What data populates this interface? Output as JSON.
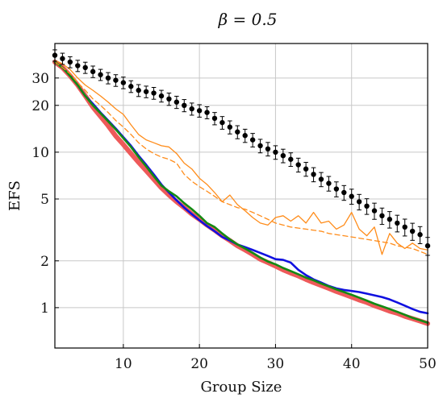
{
  "chart_data": {
    "type": "line",
    "title": "β = 0.5",
    "xlabel": "Group Size",
    "ylabel": "EFS",
    "y_scale": "log",
    "xlim": [
      1,
      50
    ],
    "ylim": [
      0.55,
      50
    ],
    "grid": true,
    "x_ticks": [
      10,
      20,
      30,
      40,
      50
    ],
    "y_ticks": [
      1,
      2,
      5,
      10,
      20,
      30
    ],
    "x_tick_labels": [
      "10",
      "20",
      "30",
      "40",
      "50"
    ],
    "y_tick_labels": [
      "1",
      "2",
      "5",
      "10",
      "20",
      "30"
    ],
    "colors": {
      "red": "#ee5a5a",
      "blue": "#1010e0",
      "green": "#138a13",
      "orange": "#ff8c1a",
      "black": "#000000"
    },
    "x": [
      1,
      2,
      3,
      4,
      5,
      6,
      7,
      8,
      9,
      10,
      11,
      12,
      13,
      14,
      15,
      16,
      17,
      18,
      19,
      20,
      21,
      22,
      23,
      24,
      25,
      26,
      27,
      28,
      29,
      30,
      31,
      32,
      33,
      34,
      35,
      36,
      37,
      38,
      39,
      40,
      41,
      42,
      43,
      44,
      45,
      46,
      47,
      48,
      49,
      50
    ],
    "series": [
      {
        "style": "red-thick",
        "values": [
          38,
          35,
          31,
          27,
          23,
          19.5,
          17,
          14.8,
          12.7,
          11.2,
          9.8,
          8.6,
          7.6,
          6.7,
          5.9,
          5.3,
          4.8,
          4.4,
          4.0,
          3.7,
          3.4,
          3.15,
          2.9,
          2.7,
          2.5,
          2.35,
          2.2,
          2.05,
          1.95,
          1.85,
          1.75,
          1.67,
          1.6,
          1.52,
          1.45,
          1.39,
          1.33,
          1.27,
          1.22,
          1.17,
          1.12,
          1.08,
          1.03,
          0.99,
          0.95,
          0.92,
          0.88,
          0.85,
          0.82,
          0.79
        ]
      },
      {
        "style": "blue",
        "values": [
          38,
          35,
          31,
          27,
          23,
          20.5,
          18,
          16,
          14.2,
          12.5,
          11,
          9.5,
          8.3,
          7.2,
          6.2,
          5.5,
          4.9,
          4.4,
          4.0,
          3.65,
          3.35,
          3.1,
          2.85,
          2.7,
          2.55,
          2.45,
          2.35,
          2.25,
          2.15,
          2.05,
          2.03,
          1.95,
          1.75,
          1.62,
          1.52,
          1.45,
          1.38,
          1.33,
          1.3,
          1.28,
          1.26,
          1.23,
          1.2,
          1.17,
          1.13,
          1.08,
          1.03,
          0.98,
          0.94,
          0.92
        ]
      },
      {
        "style": "green",
        "values": [
          38,
          35,
          31,
          27,
          23,
          20,
          17.8,
          15.8,
          14,
          12.3,
          10.8,
          9.3,
          8.1,
          7.0,
          6.1,
          5.6,
          5.2,
          4.7,
          4.3,
          3.9,
          3.5,
          3.3,
          3.0,
          2.75,
          2.55,
          2.4,
          2.25,
          2.1,
          1.98,
          1.9,
          1.8,
          1.72,
          1.64,
          1.56,
          1.5,
          1.43,
          1.37,
          1.31,
          1.26,
          1.21,
          1.16,
          1.11,
          1.06,
          1.02,
          0.98,
          0.94,
          0.9,
          0.86,
          0.83,
          0.8
        ]
      },
      {
        "style": "orange-solid",
        "values": [
          39,
          37,
          34,
          30,
          27,
          25,
          23,
          21,
          19,
          17.5,
          15,
          13,
          12,
          11.5,
          11,
          10.8,
          9.8,
          8.5,
          7.8,
          6.8,
          6.2,
          5.5,
          4.8,
          5.3,
          4.6,
          4.2,
          3.8,
          3.5,
          3.4,
          3.8,
          3.9,
          3.6,
          3.9,
          3.5,
          4.1,
          3.5,
          3.6,
          3.2,
          3.4,
          4.1,
          3.2,
          2.9,
          3.3,
          2.2,
          3.0,
          2.6,
          2.4,
          2.6,
          2.4,
          2.35
        ]
      },
      {
        "style": "orange-dashed",
        "values": [
          38,
          35,
          32,
          28,
          25,
          22,
          20,
          18,
          16,
          14.5,
          13,
          11.5,
          10.5,
          9.8,
          9.3,
          9.0,
          8.5,
          7.2,
          6.5,
          6.0,
          5.6,
          5.2,
          4.8,
          4.6,
          4.4,
          4.3,
          4.1,
          3.9,
          3.7,
          3.5,
          3.4,
          3.3,
          3.25,
          3.2,
          3.15,
          3.1,
          3.0,
          2.95,
          2.9,
          2.85,
          2.8,
          2.75,
          2.7,
          2.65,
          2.6,
          2.5,
          2.45,
          2.4,
          2.3,
          2.2
        ]
      },
      {
        "style": "black-points-errorbars",
        "values": [
          42,
          40,
          38,
          36,
          35,
          33,
          31.5,
          30,
          29,
          28,
          26.5,
          25,
          24.5,
          24,
          23,
          22,
          21,
          20,
          19,
          18.5,
          18,
          16.5,
          15.5,
          14.5,
          13.5,
          12.8,
          12,
          11,
          10.5,
          10,
          9.5,
          9.0,
          8.3,
          7.8,
          7.2,
          6.7,
          6.3,
          5.8,
          5.5,
          5.2,
          4.8,
          4.5,
          4.2,
          3.9,
          3.7,
          3.5,
          3.3,
          3.1,
          2.95,
          2.5
        ],
        "error": [
          3.5,
          3.3,
          3.1,
          3.0,
          2.9,
          2.8,
          2.6,
          2.5,
          2.5,
          2.4,
          2.3,
          2.2,
          2.1,
          2.1,
          2.0,
          2.0,
          1.9,
          1.8,
          1.7,
          1.7,
          1.6,
          1.5,
          1.45,
          1.4,
          1.3,
          1.25,
          1.2,
          1.1,
          1.05,
          1.0,
          0.95,
          0.9,
          0.85,
          0.8,
          0.75,
          0.7,
          0.68,
          0.64,
          0.6,
          0.58,
          0.55,
          0.52,
          0.5,
          0.47,
          0.45,
          0.43,
          0.41,
          0.39,
          0.37,
          0.33
        ]
      }
    ]
  }
}
